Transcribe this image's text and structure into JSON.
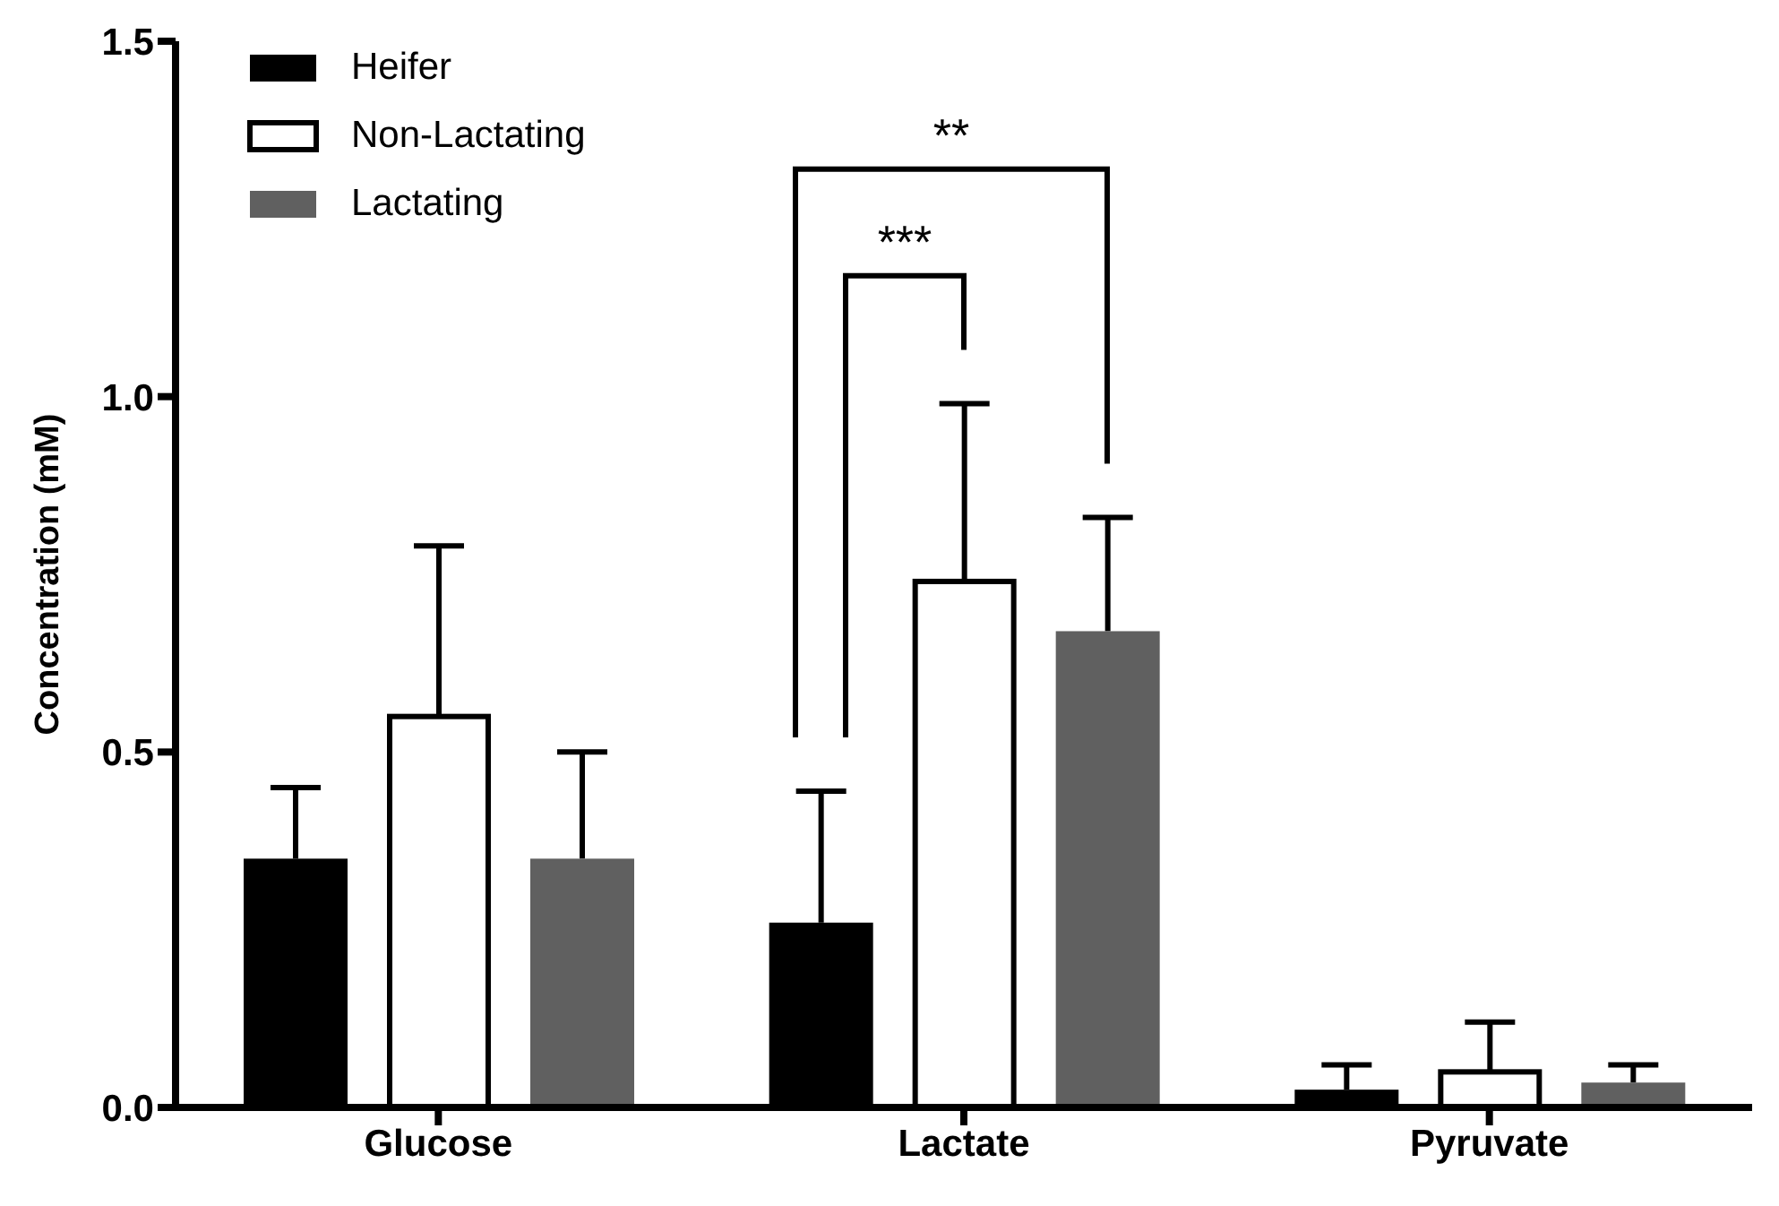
{
  "chart_data": {
    "type": "bar",
    "ylabel": "Concentration (mM)",
    "categories": [
      "Glucose",
      "Lactate",
      "Pyruvate"
    ],
    "series": [
      {
        "name": "Heifer",
        "color": "#000000",
        "values": [
          0.35,
          0.26,
          0.025
        ],
        "errors": [
          [
            0.35,
            0.45
          ],
          [
            0.26,
            0.445
          ],
          [
            0.025,
            0.06
          ]
        ]
      },
      {
        "name": "Non-Lactating",
        "color": "#ffffff",
        "values": [
          0.55,
          0.74,
          0.05
        ],
        "errors": [
          [
            0.55,
            0.79
          ],
          [
            0.74,
            0.99
          ],
          [
            0.05,
            0.12
          ]
        ]
      },
      {
        "name": "Lactating",
        "color": "#606060",
        "values": [
          0.35,
          0.67,
          0.035
        ],
        "errors": [
          [
            0.35,
            0.5
          ],
          [
            0.67,
            0.83
          ],
          [
            0.035,
            0.06
          ]
        ]
      }
    ],
    "ylim": [
      0,
      1.5
    ],
    "yticks": [
      {
        "value": 0,
        "label": "0.0"
      },
      {
        "value": 0.5,
        "label": "0.5"
      },
      {
        "value": 1,
        "label": "1.0"
      },
      {
        "value": 1.5,
        "label": "1.5"
      }
    ],
    "grid": false,
    "legend": "top left",
    "annotations": [
      "***",
      "**"
    ]
  }
}
